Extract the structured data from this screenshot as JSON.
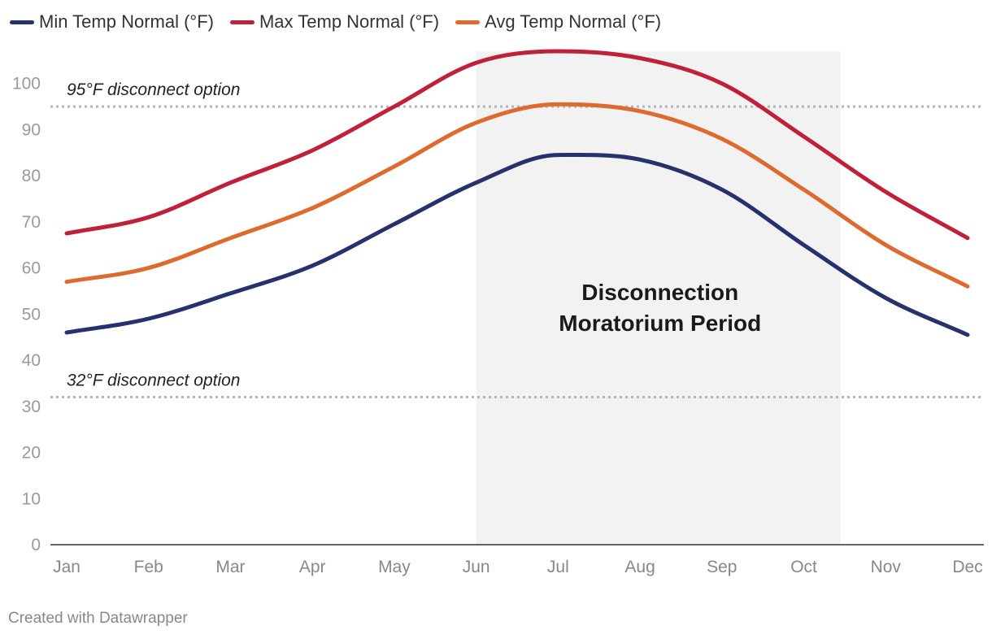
{
  "chart_data": {
    "type": "line",
    "categories": [
      "Jan",
      "Feb",
      "Mar",
      "Apr",
      "May",
      "Jun",
      "Jul",
      "Aug",
      "Sep",
      "Oct",
      "Nov",
      "Dec"
    ],
    "series": [
      {
        "name": "Min Temp Normal (°F)",
        "color": "#26326e",
        "values": [
          46,
          49,
          54.5,
          60.5,
          69.5,
          78.5,
          84.5,
          83.5,
          77,
          65,
          53.5,
          45.5
        ]
      },
      {
        "name": "Max Temp Normal (°F)",
        "color": "#c0213a",
        "values": [
          67.5,
          71,
          78.5,
          85.5,
          95,
          104.5,
          107,
          105.5,
          100,
          88.5,
          76.5,
          66.5
        ]
      },
      {
        "name": "Avg Temp Normal (°F)",
        "color": "#dd6a2e",
        "values": [
          57,
          60,
          66.5,
          73,
          82,
          91.5,
          95.5,
          94,
          88,
          77,
          65,
          56
        ]
      }
    ],
    "ylim": [
      0,
      107
    ],
    "yticks": [
      0,
      10,
      20,
      30,
      40,
      50,
      60,
      70,
      80,
      90,
      100
    ],
    "reference_lines": [
      {
        "value": 95,
        "label": "95°F disconnect option"
      },
      {
        "value": 32,
        "label": "32°F disconnect option"
      }
    ],
    "shaded_region": {
      "from": 5,
      "to": 9.45,
      "color": "#f2f2f2",
      "label_lines": [
        "Disconnection",
        "Moratorium Period"
      ]
    }
  },
  "footer": "Created with Datawrapper"
}
